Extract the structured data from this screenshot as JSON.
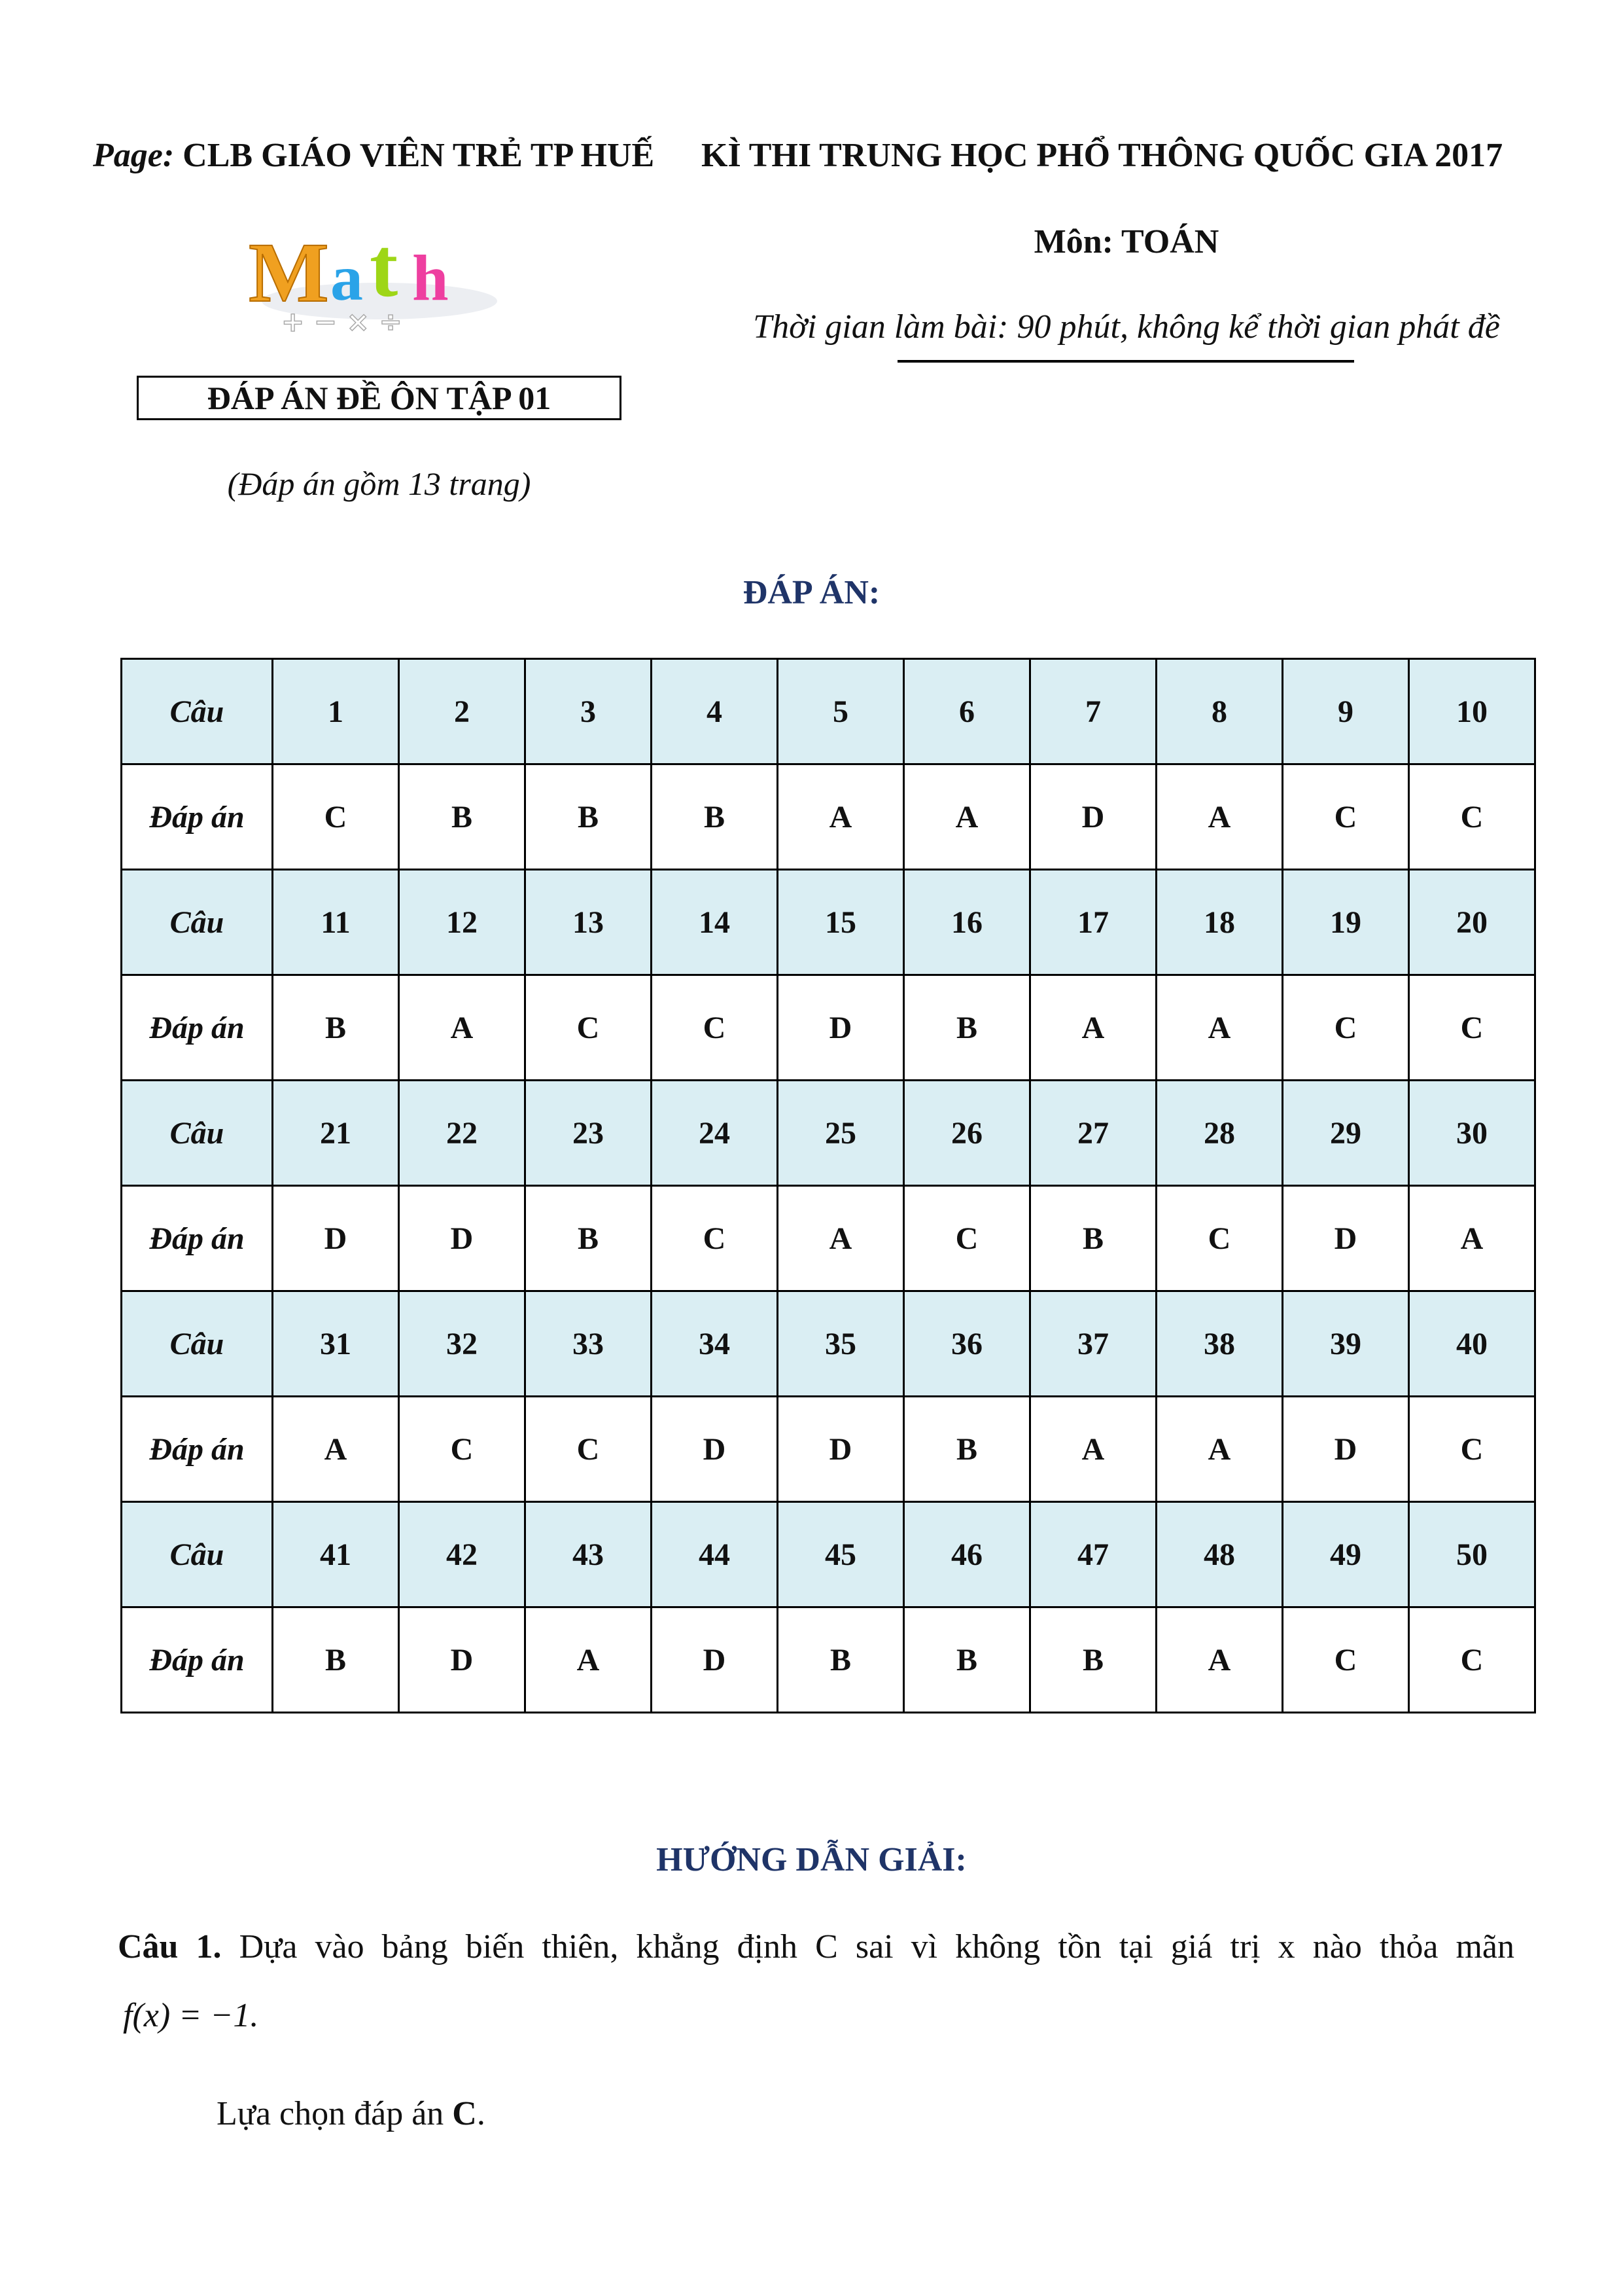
{
  "header": {
    "page_prefix": "Page:",
    "page_name": "CLB GIÁO VIÊN TRẺ TP HUẾ",
    "exam_title": "KÌ THI TRUNG HỌC PHỔ THÔNG QUỐC GIA 2017",
    "subject": "Môn: TOÁN",
    "time": "Thời gian làm bài: 90 phút, không kể thời gian phát đề",
    "logo_text": "Math",
    "logo_symbols": "+ − × ÷",
    "box_title": "ĐÁP ÁN ĐỀ ÔN TẬP 01",
    "pages_note": "(Đáp án gồm 13 trang)"
  },
  "answers_title": "ĐÁP ÁN:",
  "colors": {
    "header_row": "#daeef3",
    "heading": "#1f3468"
  },
  "table": {
    "question_label": "Câu",
    "answer_label": "Đáp án",
    "blocks": [
      {
        "q": [
          "1",
          "2",
          "3",
          "4",
          "5",
          "6",
          "7",
          "8",
          "9",
          "10"
        ],
        "a": [
          "C",
          "B",
          "B",
          "B",
          "A",
          "A",
          "D",
          "A",
          "C",
          "C"
        ]
      },
      {
        "q": [
          "11",
          "12",
          "13",
          "14",
          "15",
          "16",
          "17",
          "18",
          "19",
          "20"
        ],
        "a": [
          "B",
          "A",
          "C",
          "C",
          "D",
          "B",
          "A",
          "A",
          "C",
          "C"
        ]
      },
      {
        "q": [
          "21",
          "22",
          "23",
          "24",
          "25",
          "26",
          "27",
          "28",
          "29",
          "30"
        ],
        "a": [
          "D",
          "D",
          "B",
          "C",
          "A",
          "C",
          "B",
          "C",
          "D",
          "A"
        ]
      },
      {
        "q": [
          "31",
          "32",
          "33",
          "34",
          "35",
          "36",
          "37",
          "38",
          "39",
          "40"
        ],
        "a": [
          "A",
          "C",
          "C",
          "D",
          "D",
          "B",
          "A",
          "A",
          "D",
          "C"
        ]
      },
      {
        "q": [
          "41",
          "42",
          "43",
          "44",
          "45",
          "46",
          "47",
          "48",
          "49",
          "50"
        ],
        "a": [
          "B",
          "D",
          "A",
          "D",
          "B",
          "B",
          "B",
          "A",
          "C",
          "C"
        ]
      }
    ]
  },
  "solutions": {
    "title": "HƯỚNG DẪN GIẢI:",
    "q1_label": "Câu 1.",
    "q1_text": "Dựa vào bảng biến thiên, khẳng định C sai vì không tồn tại giá trị x nào thỏa mãn",
    "q1_formula": "f(x) = −1.",
    "q1_choice_prefix": "Lựa chọn đáp án ",
    "q1_choice": "C",
    "q1_choice_suffix": "."
  }
}
